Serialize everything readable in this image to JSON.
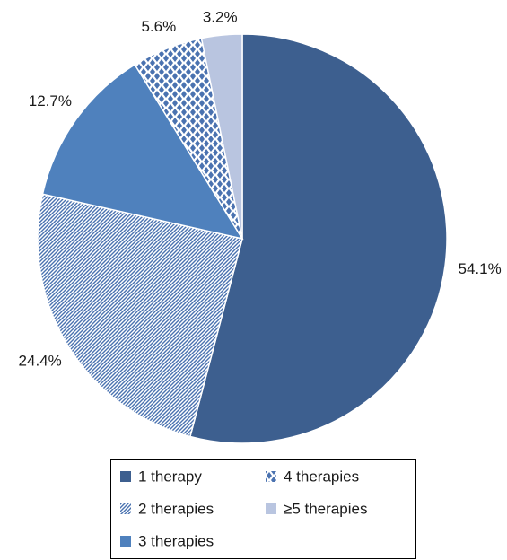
{
  "chart_data": {
    "type": "pie",
    "series": [
      {
        "name": "1 therapy",
        "color": "#3d5f8f",
        "pattern": "solid",
        "values": [
          54.1
        ],
        "value_labels": [
          "54.1%"
        ]
      },
      {
        "name": "2 therapies",
        "color": "#4a72b0",
        "pattern": "diagonal",
        "values": [
          24.4
        ],
        "value_labels": [
          "24.4%"
        ]
      },
      {
        "name": "3 therapies",
        "color": "#4f81bd",
        "pattern": "solid",
        "values": [
          12.7
        ],
        "value_labels": [
          "12.7%"
        ]
      },
      {
        "name": "4 therapies",
        "color": "#4a72b0",
        "pattern": "diamond",
        "values": [
          5.6
        ],
        "value_labels": [
          "5.6%"
        ]
      },
      {
        "name": "≥5 therapies",
        "color": "#b9c5e0",
        "pattern": "solid",
        "values": [
          3.2
        ],
        "value_labels": [
          "3.2%"
        ]
      }
    ],
    "legend": "bottom"
  }
}
